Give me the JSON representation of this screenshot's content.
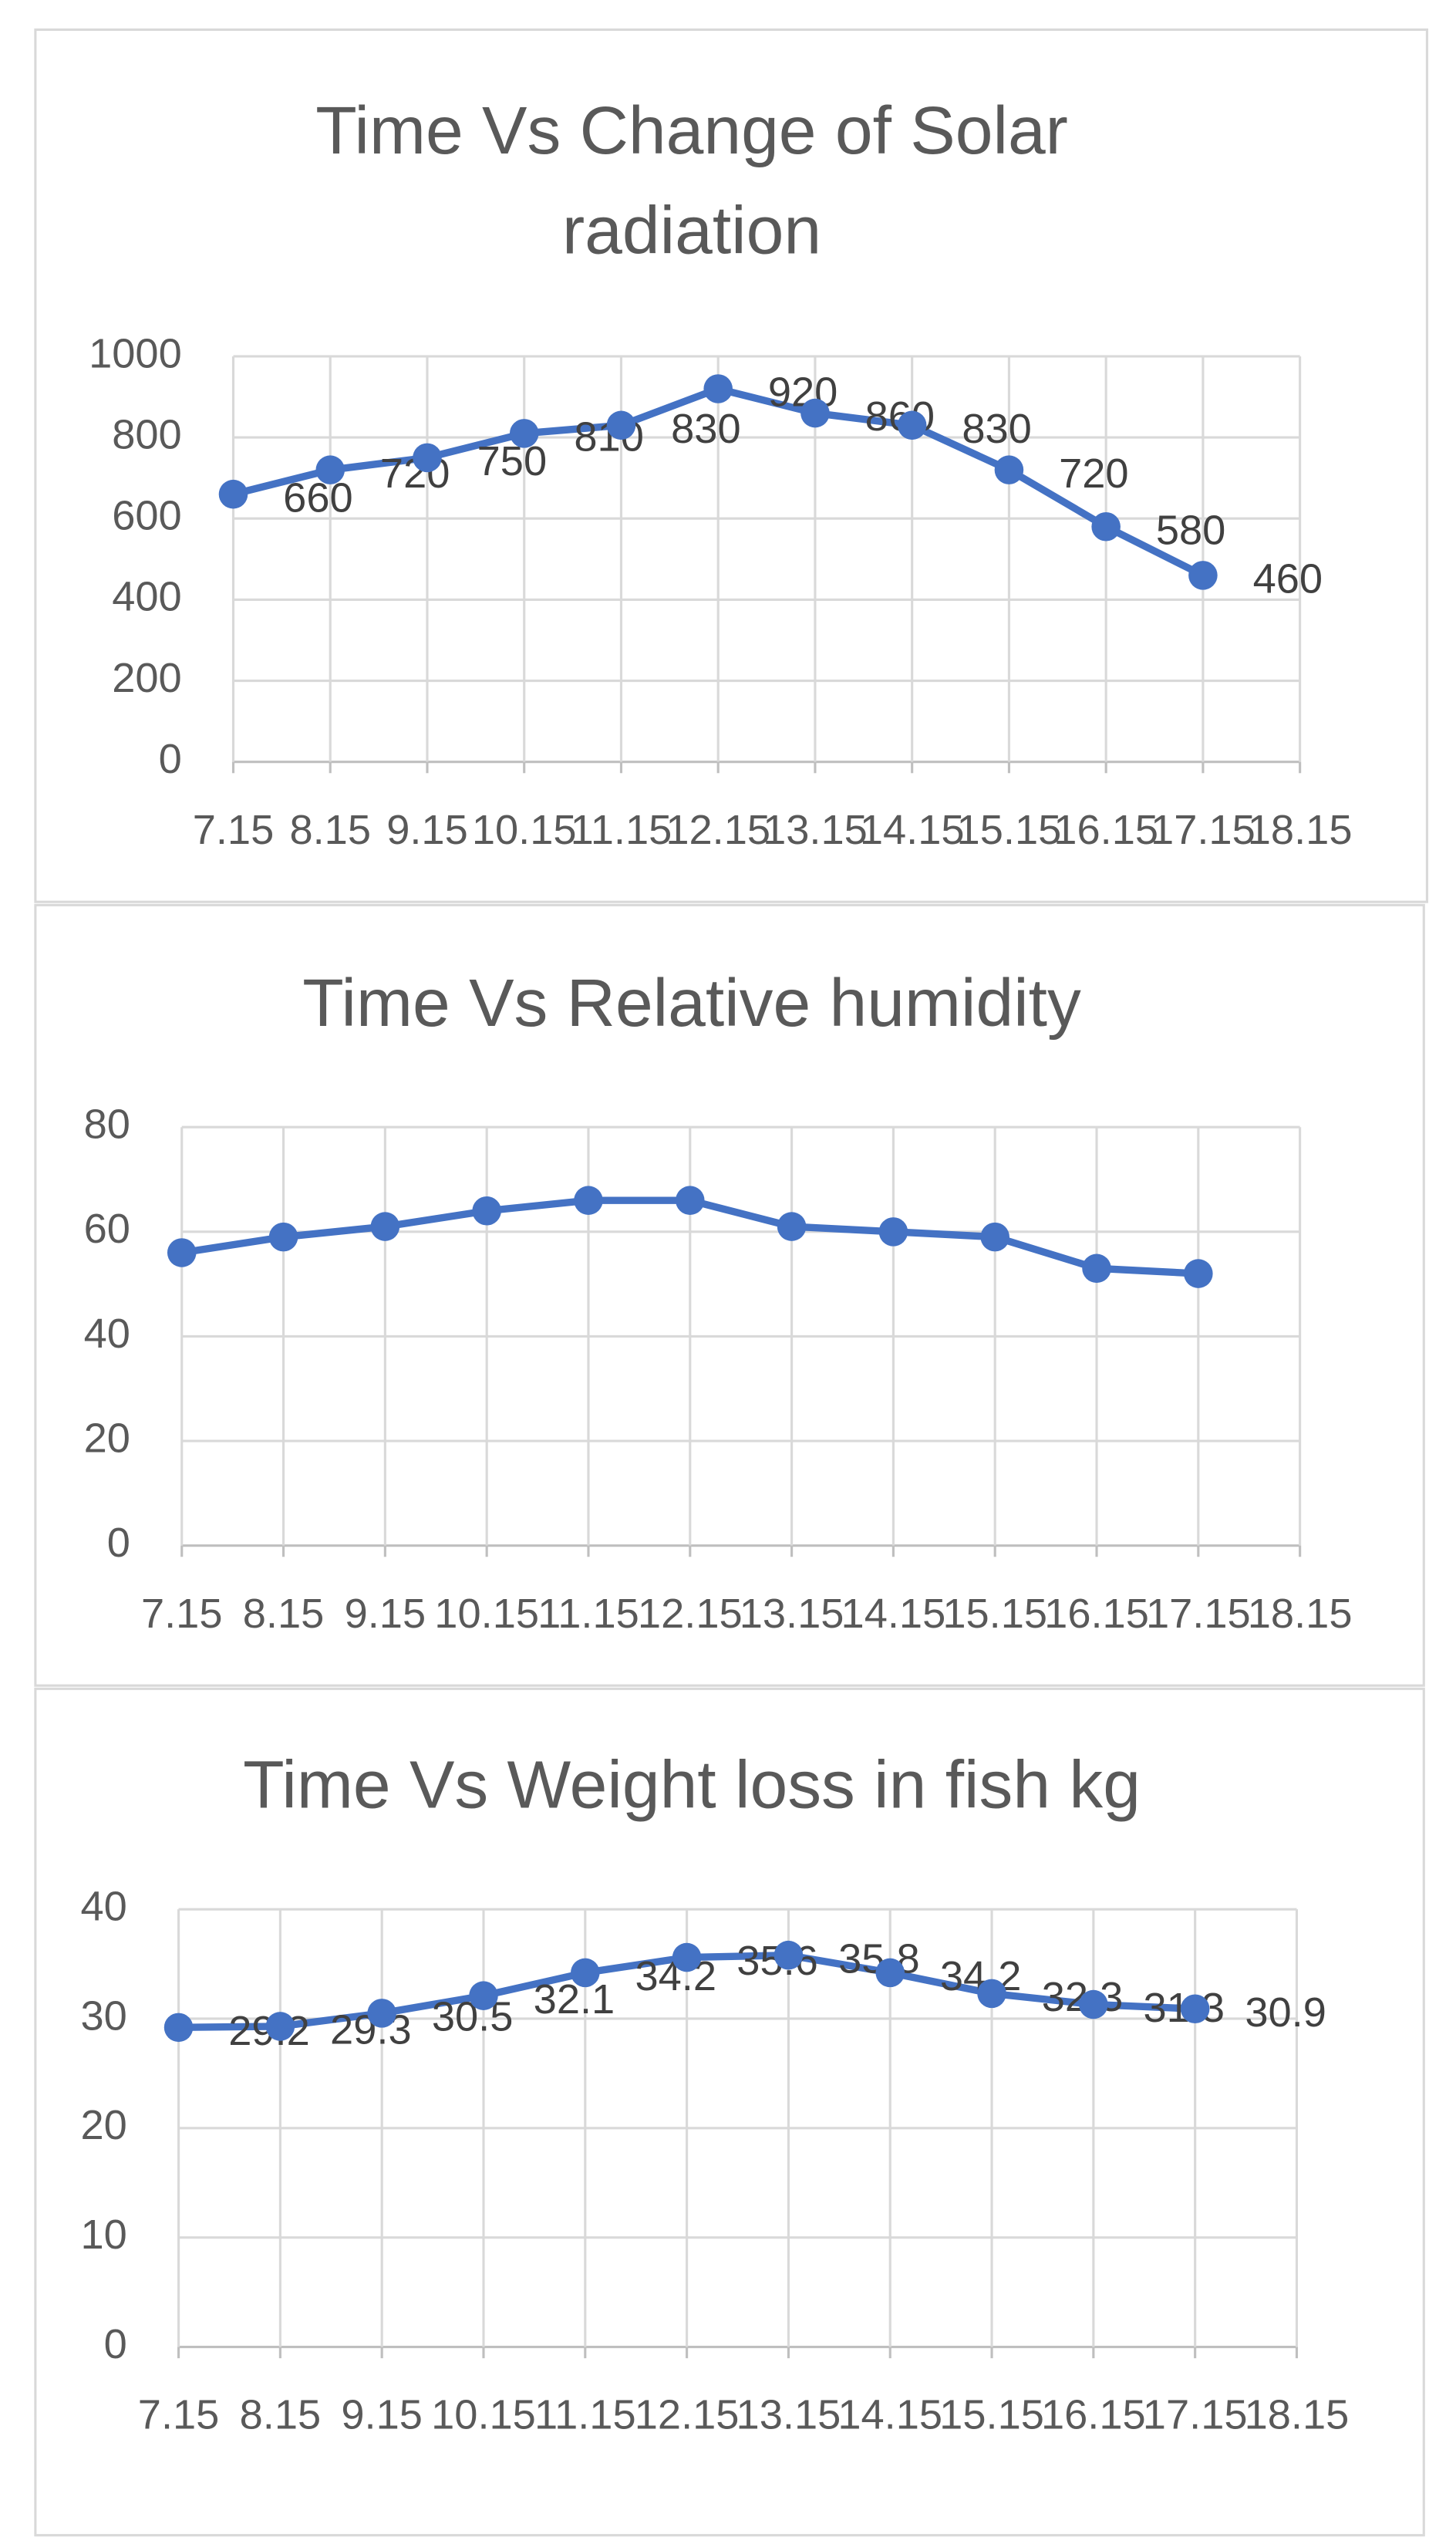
{
  "chart_data": [
    {
      "type": "line",
      "title": "Time Vs Change of Solar radiation",
      "categories": [
        "7.15",
        "8.15",
        "9.15",
        "10.15",
        "11.15",
        "12.15",
        "13.15",
        "14.15",
        "15.15",
        "16.15",
        "17.15",
        "18.15"
      ],
      "values": [
        660,
        720,
        750,
        810,
        830,
        920,
        860,
        830,
        720,
        580,
        460,
        null
      ],
      "color": "#4472c4",
      "data_labels": true,
      "ylim": [
        0,
        1000
      ],
      "yticks": [
        0,
        200,
        400,
        600,
        800,
        1000
      ],
      "grid": true
    },
    {
      "type": "line",
      "title": "Time Vs Relative humidity",
      "categories": [
        "7.15",
        "8.15",
        "9.15",
        "10.15",
        "11.15",
        "12.15",
        "13.15",
        "14.15",
        "15.15",
        "16.15",
        "17.15",
        "18.15"
      ],
      "values": [
        56,
        59,
        61,
        64,
        66,
        66,
        61,
        60,
        59,
        53,
        52,
        null
      ],
      "color": "#4472c4",
      "data_labels": false,
      "ylim": [
        0,
        80
      ],
      "yticks": [
        0,
        20,
        40,
        60,
        80
      ],
      "grid": true
    },
    {
      "type": "line",
      "title": "Time Vs Weight loss in fish kg",
      "categories": [
        "7.15",
        "8.15",
        "9.15",
        "10.15",
        "11.15",
        "12.15",
        "13.15",
        "14.15",
        "15.15",
        "16.15",
        "17.15",
        "18.15"
      ],
      "values": [
        29.2,
        29.3,
        30.5,
        32.1,
        34.2,
        35.6,
        35.8,
        34.2,
        32.3,
        31.3,
        30.9,
        null
      ],
      "color": "#4472c4",
      "data_labels": true,
      "ylim": [
        0,
        40
      ],
      "yticks": [
        0,
        10,
        20,
        30,
        40
      ],
      "grid": true
    }
  ]
}
